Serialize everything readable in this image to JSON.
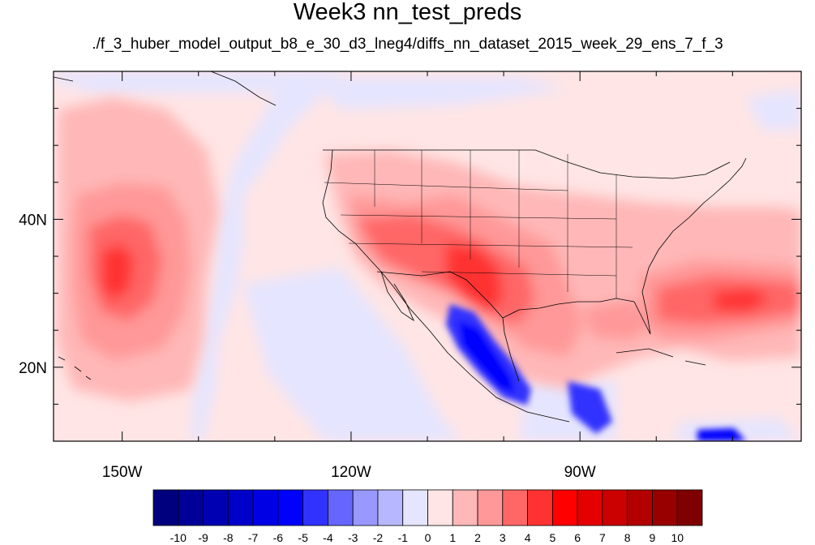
{
  "title": "Week3 nn_test_preds",
  "subtitle": "./f_3_huber_model_output_b8_e_30_d3_lneg4/diffs_nn_dataset_2015_week_29_ens_7_f_3",
  "map": {
    "lon_range": [
      -159,
      -61
    ],
    "lat_range": [
      10,
      60
    ],
    "lon_ticks": [
      {
        "value": -150,
        "label": "150W"
      },
      {
        "value": -120,
        "label": "120W"
      },
      {
        "value": -90,
        "label": "90W"
      }
    ],
    "lat_ticks": [
      {
        "value": 40,
        "label": "40N"
      },
      {
        "value": 20,
        "label": "20N"
      }
    ],
    "lon_minor_step": 10,
    "lat_minor_step": 5
  },
  "colorbar": {
    "levels": [
      "-10",
      "-9",
      "-8",
      "-7",
      "-6",
      "-5",
      "-4",
      "-3",
      "-2",
      "-1",
      "0",
      "1",
      "2",
      "3",
      "4",
      "5",
      "6",
      "7",
      "8",
      "9",
      "10"
    ],
    "colors": [
      "#00007f",
      "#000098",
      "#0000b2",
      "#0000cb",
      "#0000e5",
      "#0000ff",
      "#3232ff",
      "#6666ff",
      "#9898ff",
      "#b7b7ff",
      "#e5e5ff",
      "#ffe5e5",
      "#ffb7b7",
      "#ff9898",
      "#ff6666",
      "#ff3232",
      "#ff0000",
      "#e50000",
      "#cb0000",
      "#b20000",
      "#980000",
      "#7f0000"
    ]
  },
  "colors": {
    "background_field": "#ffe5e5",
    "weak_negative": "#e5e5ff",
    "weak_positive": "#ffb7b7",
    "moderate_positive": "#ff9898",
    "strong_positive": "#ff6666",
    "stronger_positive": "#ff3232",
    "strong_negative": "#3232ff",
    "stronger_negative": "#0000ff"
  }
}
